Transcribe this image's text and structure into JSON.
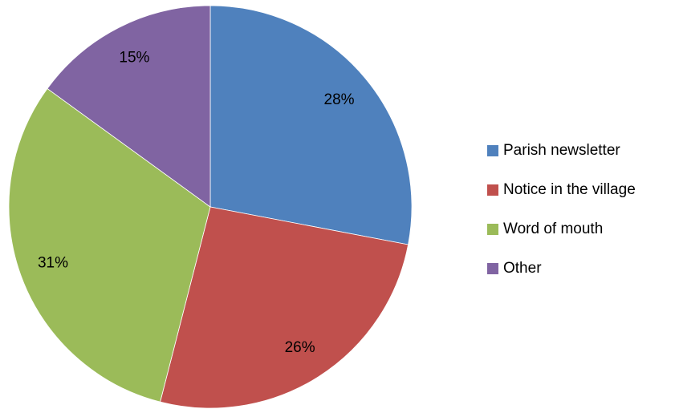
{
  "chart_data": {
    "type": "pie",
    "categories": [
      "Parish newsletter",
      "Notice in the village",
      "Word of mouth",
      "Other"
    ],
    "values": [
      28,
      26,
      31,
      15
    ],
    "value_labels": [
      "28%",
      "26%",
      "31%",
      "15%"
    ],
    "colors": [
      "#4f81bd",
      "#c0504d",
      "#9bbb59",
      "#8064a2"
    ],
    "legend": "right"
  }
}
